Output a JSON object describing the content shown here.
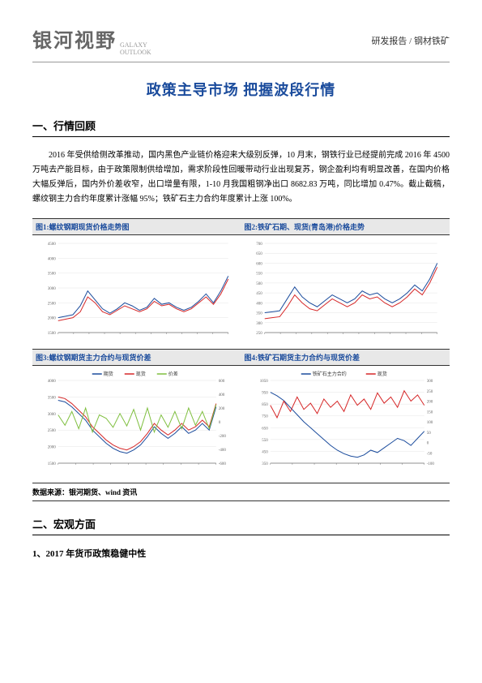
{
  "header": {
    "logo_cn": "银河视野",
    "logo_en_1": "GALAXY",
    "logo_en_2": "OUTLOOK",
    "right": "研发报告 / 钢材铁矿"
  },
  "title": "政策主导市场 把握波段行情",
  "section1_heading": "一、行情回顾",
  "body1": "2016 年受供给侧改革推动，国内黑色产业链价格迎来大级别反弹，10 月末，钢铁行业已经提前完成 2016 年 4500 万吨去产能目标，由于政策限制供给增加，需求阶段性回暖带动行业出现复苏，钢企盈利均有明显改善，在国内价格大幅反弹后，国内外价差收窄，出口增量有限，1-10 月我国粗钢净出口 8682.83 万吨，同比增加 0.47%。截止截稿，螺纹钢主力合约年度累计涨幅 95%；铁矿石主力合约年度累计上涨 100%。",
  "charts": {
    "c1": {
      "title": "图1:螺纹钢期现货价格走势图",
      "type": "line",
      "colors": {
        "line1": "#1a4b9c",
        "line2": "#d62728",
        "grid": "#ddd",
        "bg": "#fff"
      },
      "ylim": [
        1500,
        4500
      ],
      "ytick_step": 500,
      "xrange": [
        "01/04",
        "12/30"
      ],
      "series1": [
        2000,
        2050,
        2100,
        2400,
        2900,
        2600,
        2300,
        2150,
        2300,
        2500,
        2400,
        2250,
        2350,
        2650,
        2450,
        2500,
        2350,
        2250,
        2350,
        2550,
        2800,
        2500,
        2900,
        3400
      ],
      "series2": [
        1900,
        1950,
        2000,
        2200,
        2700,
        2500,
        2200,
        2100,
        2250,
        2400,
        2300,
        2200,
        2300,
        2550,
        2400,
        2450,
        2300,
        2200,
        2300,
        2500,
        2700,
        2450,
        2800,
        3300
      ]
    },
    "c2": {
      "title": "图2:铁矿石期、现货(青岛港)价格走势",
      "type": "line",
      "colors": {
        "line1": "#1a4b9c",
        "line2": "#d62728",
        "grid": "#ddd"
      },
      "ylim": [
        250,
        700
      ],
      "ytick_step": 50,
      "series1": [
        350,
        355,
        360,
        420,
        480,
        430,
        400,
        380,
        410,
        440,
        420,
        400,
        420,
        460,
        440,
        450,
        420,
        400,
        420,
        450,
        490,
        460,
        520,
        600
      ],
      "series2": [
        320,
        325,
        330,
        380,
        440,
        400,
        370,
        360,
        390,
        420,
        400,
        380,
        400,
        440,
        420,
        430,
        400,
        380,
        400,
        430,
        470,
        440,
        500,
        580
      ]
    },
    "c3": {
      "title": "图3:螺纹钢期货主力合约与现货价差",
      "type": "line",
      "legend": [
        "期货",
        "现货",
        "价差"
      ],
      "colors": {
        "line1": "#1a4b9c",
        "line2": "#d62728",
        "line3": "#7fbf3f",
        "grid": "#ddd"
      },
      "ylim_left": [
        1500,
        4000
      ],
      "ylim_right": [
        -600,
        600
      ],
      "series1": [
        3400,
        3350,
        3200,
        3000,
        2800,
        2500,
        2300,
        2100,
        1950,
        1850,
        1800,
        1900,
        2050,
        2300,
        2600,
        2400,
        2250,
        2400,
        2600,
        2400,
        2500,
        2700,
        2500,
        3200
      ],
      "series2": [
        3500,
        3450,
        3300,
        3100,
        2900,
        2600,
        2400,
        2200,
        2050,
        1950,
        1900,
        2000,
        2150,
        2400,
        2700,
        2500,
        2350,
        2500,
        2700,
        2500,
        2600,
        2800,
        2600,
        3300
      ],
      "series3": [
        100,
        -50,
        150,
        -100,
        200,
        -150,
        100,
        50,
        -80,
        120,
        -60,
        180,
        -120,
        200,
        -150,
        100,
        -80,
        150,
        -100,
        200,
        -50,
        150,
        -100,
        250
      ]
    },
    "c4": {
      "title": "图4:铁矿石期货主力合约与现货价差",
      "type": "line",
      "legend": [
        "铁矿石主力合约",
        "现货"
      ],
      "colors": {
        "line1": "#1a4b9c",
        "line2": "#d62728",
        "grid": "#ddd"
      },
      "ylim_left": [
        350,
        1050
      ],
      "ylim_right": [
        -100,
        300
      ],
      "series1": [
        950,
        920,
        880,
        820,
        760,
        700,
        650,
        600,
        550,
        500,
        460,
        430,
        410,
        400,
        420,
        460,
        440,
        480,
        520,
        560,
        540,
        500,
        560,
        620
      ],
      "series2": [
        180,
        120,
        200,
        150,
        220,
        160,
        190,
        140,
        210,
        170,
        200,
        150,
        230,
        180,
        210,
        160,
        240,
        190,
        220,
        170,
        250,
        200,
        230,
        180
      ]
    }
  },
  "source": "数据来源：银河期货、wind 资讯",
  "section2_heading": "二、宏观方面",
  "sub_heading": "1、2017 年货币政策稳健中性"
}
